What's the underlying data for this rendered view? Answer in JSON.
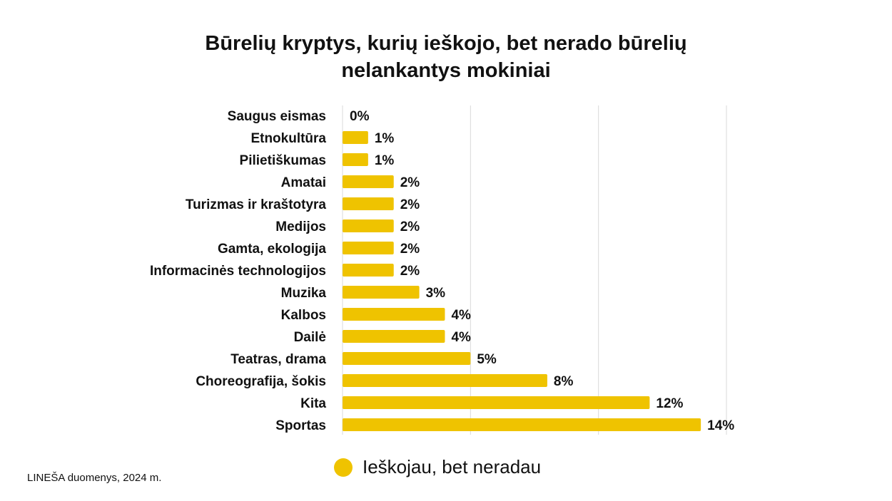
{
  "title_lines": [
    "Būrelių kryptys, kurių ieškojo, bet nerado būrelių",
    "nelankantys mokiniai"
  ],
  "source_note": "LINEŠA duomenys, 2024 m.",
  "colors": {
    "bar": "#EFC300",
    "grid": "#d9d9d9",
    "text": "#111111"
  },
  "chart_data": {
    "type": "bar",
    "orientation": "horizontal",
    "title": "Būrelių kryptys, kurių ieškojo, bet nerado būrelių nelankantys mokiniai",
    "categories": [
      "Saugus eismas",
      "Etnokultūra",
      "Pilietiškumas",
      "Amatai",
      "Turizmas ir kraštotyra",
      "Medijos",
      "Gamta, ekologija",
      "Informacinės technologijos",
      "Muzika",
      "Kalbos",
      "Dailė",
      "Teatras, drama",
      "Choreografija, šokis",
      "Kita",
      "Sportas"
    ],
    "series": [
      {
        "name": "Ieškojau, bet neradau",
        "values": [
          0,
          1,
          1,
          2,
          2,
          2,
          2,
          2,
          3,
          4,
          4,
          5,
          8,
          12,
          14
        ],
        "labels": [
          "0%",
          "1%",
          "1%",
          "2%",
          "2%",
          "2%",
          "2%",
          "2%",
          "3%",
          "4%",
          "4%",
          "5%",
          "8%",
          "12%",
          "14%"
        ]
      }
    ],
    "xlim": [
      0,
      15
    ],
    "xgrid": [
      5,
      10,
      15
    ],
    "grid": true,
    "legend_position": "bottom"
  }
}
